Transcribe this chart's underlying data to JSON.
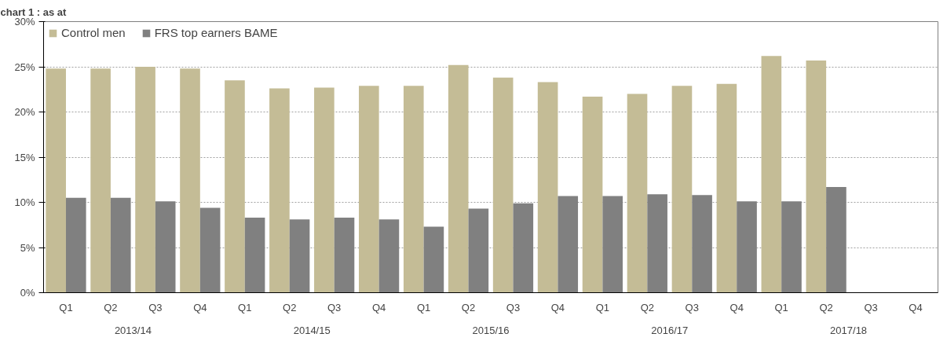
{
  "chart_data": {
    "type": "bar",
    "title": "chart 1 : as at",
    "categories": [
      "Q1",
      "Q2",
      "Q3",
      "Q4",
      "Q1",
      "Q2",
      "Q3",
      "Q4",
      "Q1",
      "Q2",
      "Q3",
      "Q4",
      "Q1",
      "Q2",
      "Q3",
      "Q4",
      "Q1",
      "Q2",
      "Q3",
      "Q4"
    ],
    "series": [
      {
        "name": "Control men",
        "color": "#c4bc96",
        "values": [
          24.8,
          24.8,
          25.0,
          24.8,
          23.5,
          22.6,
          22.7,
          22.9,
          22.9,
          25.2,
          23.8,
          23.3,
          21.7,
          22.0,
          22.9,
          23.1,
          26.2,
          25.7,
          null,
          null
        ]
      },
      {
        "name": "FRS top earners BAME",
        "color": "#808080",
        "values": [
          10.5,
          10.5,
          10.1,
          9.4,
          8.3,
          8.1,
          8.3,
          8.1,
          7.3,
          9.3,
          9.9,
          10.7,
          10.7,
          10.9,
          10.8,
          10.1,
          10.1,
          11.7,
          null,
          null
        ]
      }
    ],
    "annotations": [
      "2013/14",
      "2014/15",
      "2015/16",
      "2016/17",
      "2017/18"
    ],
    "ylim": [
      0,
      30
    ],
    "yticks": [
      {
        "value": 0,
        "label": "0%"
      },
      {
        "value": 5,
        "label": "5%"
      },
      {
        "value": 10,
        "label": "10%"
      },
      {
        "value": 15,
        "label": "15%"
      },
      {
        "value": 20,
        "label": "20%"
      },
      {
        "value": 25,
        "label": "25%"
      },
      {
        "value": 30,
        "label": "30%"
      }
    ],
    "grid": "y",
    "legend": "top left"
  }
}
